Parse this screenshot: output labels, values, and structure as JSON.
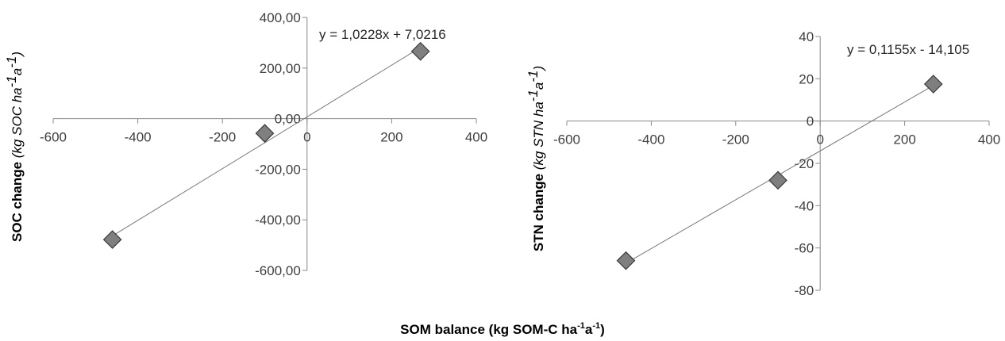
{
  "figure": {
    "xlabel_main": "SOM balance (kg SOM-C ha",
    "xlabel_sup1": "-1",
    "xlabel_mid": "a",
    "xlabel_sup2": "-1",
    "xlabel_end": ")"
  },
  "chart_data": [
    {
      "type": "scatter",
      "ylabel_bold": "SOC change",
      "ylabel_unit": "(kg SOC ha",
      "ylabel_sup1": "-1",
      "ylabel_unit2": "a",
      "ylabel_sup2": "-1",
      "ylabel_close": ")",
      "equation": "y = 1,0228x + 7,0216",
      "xlim": [
        -600,
        400
      ],
      "ylim": [
        -600,
        400
      ],
      "xticks": [
        -600,
        -400,
        -200,
        0,
        200,
        400
      ],
      "xtick_labels": [
        "-600",
        "-400",
        "-200",
        "0",
        "200",
        "400"
      ],
      "yticks": [
        400,
        200,
        0,
        -200,
        -400,
        -600
      ],
      "ytick_labels": [
        "400,00",
        "200,00",
        "0,00",
        "-200,00",
        "-400,00",
        "-600,00"
      ],
      "trendline": {
        "slope": 1.0228,
        "intercept": 7.0216
      },
      "points": [
        {
          "x": -460,
          "y": -478
        },
        {
          "x": -100,
          "y": -58
        },
        {
          "x": 268,
          "y": 266
        }
      ],
      "marker_color": "#7f7f7f",
      "grid": false
    },
    {
      "type": "scatter",
      "ylabel_bold": "STN change",
      "ylabel_unit": "(kg STN ha",
      "ylabel_sup1": "-1",
      "ylabel_unit2": "a",
      "ylabel_sup2": "-1",
      "ylabel_close": ")",
      "equation": "y = 0,1155x - 14,105",
      "xlim": [
        -600,
        400
      ],
      "ylim": [
        -80,
        40
      ],
      "xticks": [
        -600,
        -400,
        -200,
        0,
        200,
        400
      ],
      "xtick_labels": [
        "-600",
        "-400",
        "-200",
        "0",
        "200",
        "400"
      ],
      "yticks": [
        40,
        20,
        0,
        -20,
        -40,
        -60,
        -80
      ],
      "ytick_labels": [
        "40",
        "20",
        "0",
        "-20",
        "-40",
        "-60",
        "-80"
      ],
      "trendline": {
        "slope": 0.1155,
        "intercept": -14.105
      },
      "points": [
        {
          "x": -460,
          "y": -66
        },
        {
          "x": -100,
          "y": -28
        },
        {
          "x": 268,
          "y": 17.5
        }
      ],
      "marker_color": "#7f7f7f",
      "grid": false
    }
  ]
}
